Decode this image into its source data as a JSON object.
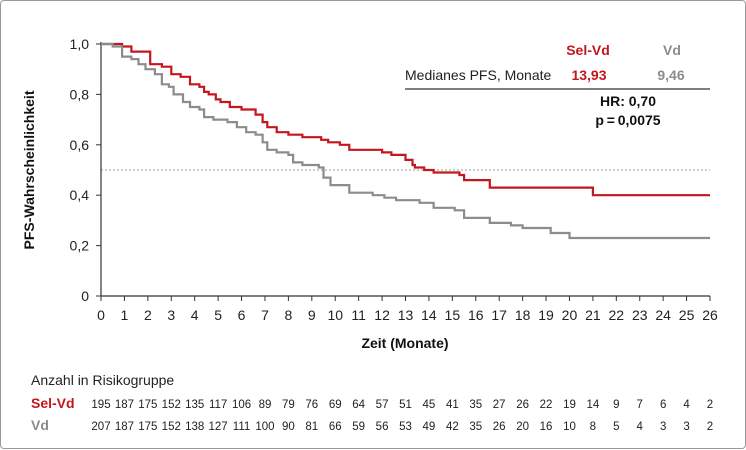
{
  "colors": {
    "sel_vd": "#c4161c",
    "vd": "#8c8c8c",
    "axis": "#333333",
    "ref_line": "#9a9a9a"
  },
  "chart_data": {
    "type": "line",
    "xlabel": "Zeit (Monate)",
    "ylabel": "PFS-Wahrscheinlichkeit",
    "xlim": [
      0,
      26
    ],
    "ylim": [
      0,
      1
    ],
    "x_ticks": [
      "0",
      "1",
      "2",
      "3",
      "4",
      "5",
      "6",
      "7",
      "8",
      "9",
      "10",
      "11",
      "12",
      "13",
      "14",
      "15",
      "16",
      "17",
      "18",
      "19",
      "20",
      "21",
      "22",
      "23",
      "24",
      "25",
      "26"
    ],
    "y_ticks": [
      "0",
      "0,2",
      "0,4",
      "0,6",
      "0,8",
      "1,0"
    ],
    "reference_line_y": 0.5,
    "series": [
      {
        "name": "Sel-Vd",
        "color": "#c4161c",
        "steps": [
          [
            0,
            1.0
          ],
          [
            0.9,
            0.99
          ],
          [
            1.3,
            0.97
          ],
          [
            2.1,
            0.92
          ],
          [
            2.6,
            0.91
          ],
          [
            3.0,
            0.88
          ],
          [
            3.4,
            0.87
          ],
          [
            3.8,
            0.84
          ],
          [
            4.2,
            0.83
          ],
          [
            4.4,
            0.81
          ],
          [
            4.6,
            0.8
          ],
          [
            4.9,
            0.78
          ],
          [
            5.1,
            0.77
          ],
          [
            5.5,
            0.75
          ],
          [
            6.0,
            0.74
          ],
          [
            6.6,
            0.72
          ],
          [
            6.9,
            0.69
          ],
          [
            7.1,
            0.67
          ],
          [
            7.5,
            0.65
          ],
          [
            8.0,
            0.64
          ],
          [
            8.6,
            0.63
          ],
          [
            9.4,
            0.62
          ],
          [
            9.7,
            0.61
          ],
          [
            10.2,
            0.6
          ],
          [
            10.6,
            0.58
          ],
          [
            12.0,
            0.57
          ],
          [
            12.4,
            0.56
          ],
          [
            13.0,
            0.54
          ],
          [
            13.3,
            0.52
          ],
          [
            13.4,
            0.51
          ],
          [
            13.8,
            0.5
          ],
          [
            14.2,
            0.49
          ],
          [
            15.3,
            0.48
          ],
          [
            15.5,
            0.46
          ],
          [
            16.6,
            0.43
          ],
          [
            21.0,
            0.4
          ],
          [
            26.0,
            0.4
          ]
        ]
      },
      {
        "name": "Vd",
        "color": "#8c8c8c",
        "steps": [
          [
            0,
            1.0
          ],
          [
            0.5,
            0.99
          ],
          [
            0.9,
            0.95
          ],
          [
            1.3,
            0.94
          ],
          [
            1.6,
            0.92
          ],
          [
            1.9,
            0.9
          ],
          [
            2.3,
            0.88
          ],
          [
            2.6,
            0.84
          ],
          [
            2.9,
            0.83
          ],
          [
            3.1,
            0.8
          ],
          [
            3.5,
            0.77
          ],
          [
            3.8,
            0.75
          ],
          [
            4.2,
            0.74
          ],
          [
            4.4,
            0.71
          ],
          [
            4.8,
            0.7
          ],
          [
            5.4,
            0.69
          ],
          [
            5.8,
            0.67
          ],
          [
            6.2,
            0.65
          ],
          [
            6.6,
            0.64
          ],
          [
            6.9,
            0.61
          ],
          [
            7.1,
            0.58
          ],
          [
            7.5,
            0.57
          ],
          [
            8.0,
            0.56
          ],
          [
            8.2,
            0.53
          ],
          [
            8.6,
            0.52
          ],
          [
            9.3,
            0.51
          ],
          [
            9.5,
            0.47
          ],
          [
            9.8,
            0.44
          ],
          [
            10.6,
            0.41
          ],
          [
            11.6,
            0.4
          ],
          [
            12.1,
            0.39
          ],
          [
            12.6,
            0.38
          ],
          [
            13.6,
            0.37
          ],
          [
            14.2,
            0.35
          ],
          [
            15.1,
            0.34
          ],
          [
            15.5,
            0.31
          ],
          [
            16.6,
            0.29
          ],
          [
            17.5,
            0.28
          ],
          [
            18.0,
            0.27
          ],
          [
            19.2,
            0.25
          ],
          [
            20.0,
            0.23
          ],
          [
            26.0,
            0.23
          ]
        ]
      }
    ],
    "legend": {
      "headers": [
        "Sel-Vd",
        "Vd"
      ],
      "row_label": "Medianes PFS, Monate",
      "values": [
        "13,93",
        "9,46"
      ]
    },
    "annotations": [
      "HR: 0,70",
      "p = 0,0075"
    ],
    "risk_table": {
      "title": "Anzahl in Risikogruppe",
      "rows": [
        {
          "label": "Sel-Vd",
          "values": [
            "195",
            "187",
            "175",
            "152",
            "135",
            "117",
            "106",
            "89",
            "79",
            "76",
            "69",
            "64",
            "57",
            "51",
            "45",
            "41",
            "35",
            "27",
            "26",
            "22",
            "19",
            "14",
            "9",
            "7",
            "6",
            "4",
            "2"
          ]
        },
        {
          "label": "Vd",
          "values": [
            "207",
            "187",
            "175",
            "152",
            "138",
            "127",
            "111",
            "100",
            "90",
            "81",
            "66",
            "59",
            "56",
            "53",
            "49",
            "42",
            "35",
            "26",
            "20",
            "16",
            "10",
            "8",
            "5",
            "4",
            "3",
            "3",
            "2"
          ]
        }
      ]
    }
  }
}
